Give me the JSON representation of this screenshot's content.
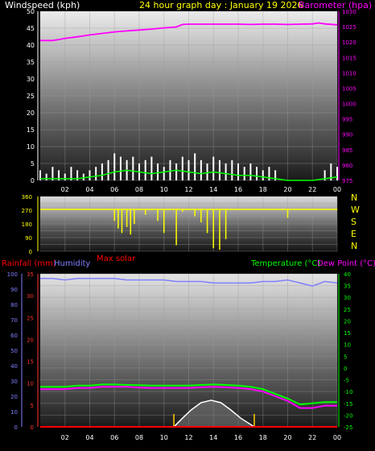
{
  "header": {
    "windspeed_label": "Windspeed (kph)",
    "title": "24 hour graph day : January 19 2026",
    "barometer_label": "Barometer (hpa)"
  },
  "colors": {
    "background": "#000000",
    "windspeed": "#ffffff",
    "gust": "#ffffff",
    "avg_wind": "#00ff00",
    "barometer": "#ff00ff",
    "wind_direction": "#ffff00",
    "humidity": "#8080ff",
    "temperature": "#00ff00",
    "dew_point": "#ff00ff",
    "rainfall": "#ff0000",
    "max_solar": "#ffffff",
    "solar": "#909090",
    "sun_markers": "#ffcc00"
  },
  "chart_data": [
    {
      "type": "line",
      "title": "24 hour graph day : January 19 2026",
      "ylabel": "Windspeed (kph)",
      "y2label": "Barometer (hpa)",
      "ylim": [
        0,
        50
      ],
      "y2lim": [
        975,
        1030
      ],
      "yticks": [
        "0",
        "5",
        "10",
        "15",
        "20",
        "25",
        "30",
        "35",
        "40",
        "45",
        "50"
      ],
      "y2ticks": [
        "975",
        "980",
        "985",
        "990",
        "995",
        "1000",
        "1005",
        "1010",
        "1015",
        "1020",
        "1025",
        "1030"
      ],
      "xticks": [
        "02",
        "04",
        "06",
        "08",
        "10",
        "12",
        "14",
        "16",
        "18",
        "20",
        "22",
        "00"
      ],
      "grid": true,
      "series": [
        {
          "name": "Barometer (hpa)",
          "axis": "right",
          "x": [
            0,
            1,
            1.5,
            2,
            3,
            4,
            5,
            6,
            7,
            8,
            9,
            10,
            11,
            11.5,
            12,
            13,
            14,
            15,
            16,
            17,
            18,
            19,
            20,
            21,
            22,
            22.5,
            23,
            24
          ],
          "values": [
            1020.5,
            1020.5,
            1020.8,
            1021.2,
            1021.7,
            1022.3,
            1022.8,
            1023.3,
            1023.6,
            1023.9,
            1024.2,
            1024.6,
            1024.9,
            1025.7,
            1025.8,
            1025.8,
            1025.8,
            1025.8,
            1025.8,
            1025.7,
            1025.8,
            1025.8,
            1025.7,
            1025.8,
            1025.9,
            1026.2,
            1025.9,
            1025.6
          ]
        },
        {
          "name": "Wind gust",
          "axis": "left",
          "x": [
            0,
            0.5,
            1,
            1.5,
            2,
            2.5,
            3,
            3.5,
            4,
            4.5,
            5,
            5.5,
            6,
            6.5,
            7,
            7.5,
            8,
            8.5,
            9,
            9.5,
            10,
            10.5,
            11,
            11.5,
            12,
            12.5,
            13,
            13.5,
            14,
            14.5,
            15,
            15.5,
            16,
            16.5,
            17,
            17.5,
            18,
            18.5,
            19,
            19.5,
            20,
            20.5,
            21,
            21.5,
            22,
            22.5,
            23,
            23.5,
            24
          ],
          "values": [
            3,
            2,
            4,
            3,
            2,
            4,
            3,
            2,
            3,
            4,
            5,
            6,
            8,
            7,
            6,
            7,
            5,
            6,
            7,
            5,
            4,
            6,
            5,
            7,
            6,
            8,
            6,
            5,
            7,
            6,
            5,
            6,
            5,
            4,
            5,
            4,
            3,
            4,
            3,
            0,
            0,
            0,
            0,
            0,
            0,
            0,
            3,
            5,
            4
          ]
        },
        {
          "name": "Average wind",
          "axis": "left",
          "x": [
            0,
            1,
            2,
            3,
            4,
            5,
            6,
            7,
            8,
            9,
            10,
            11,
            12,
            13,
            14,
            15,
            16,
            17,
            18,
            19,
            20,
            21,
            22,
            23,
            24
          ],
          "values": [
            0.5,
            0.5,
            0.5,
            0.5,
            1,
            1.5,
            2.5,
            3,
            2.5,
            2,
            2.5,
            3,
            2.5,
            2,
            2.5,
            2,
            1.5,
            1.5,
            1,
            0.5,
            0,
            0,
            0,
            0.5,
            1
          ]
        }
      ]
    },
    {
      "type": "scatter",
      "title": "",
      "ylabel": "",
      "ylim": [
        0,
        360
      ],
      "yticks": [
        "0",
        "45",
        "90",
        "135",
        "180",
        "225",
        "270",
        "315",
        "360"
      ],
      "y2ticks": [
        "N",
        "W",
        "S",
        "E",
        "N"
      ],
      "xticks": [
        "02",
        "04",
        "06",
        "08",
        "10",
        "12",
        "14",
        "16",
        "18",
        "20",
        "22",
        "00"
      ],
      "grid": true,
      "series": [
        {
          "name": "Wind direction",
          "x": [
            0,
            1,
            2,
            3,
            4,
            4.5,
            5,
            5.5,
            6,
            6.3,
            6.6,
            7,
            7.3,
            7.6,
            8,
            8.5,
            9,
            9.5,
            10,
            10.5,
            11,
            11.5,
            12,
            12.5,
            13,
            13.5,
            14,
            14.5,
            15,
            15.5,
            16,
            17,
            18,
            19,
            20,
            21,
            22,
            23,
            24
          ],
          "values": [
            275,
            276,
            274,
            275,
            277,
            273,
            276,
            275,
            200,
            150,
            120,
            160,
            110,
            180,
            280,
            240,
            270,
            200,
            120,
            275,
            40,
            260,
            275,
            230,
            190,
            120,
            20,
            10,
            80,
            270,
            275,
            276,
            274,
            275,
            220,
            276,
            275,
            274,
            276
          ]
        }
      ]
    },
    {
      "type": "line",
      "title": "",
      "ylabel": "Rainfall (mm)",
      "y2label": "Temperature (°C)",
      "ylim": [
        0,
        35
      ],
      "y2lim": [
        -25,
        40
      ],
      "yticks": [
        "0",
        "5",
        "10",
        "15",
        "20",
        "25",
        "30",
        "35"
      ],
      "humidity_ticks": [
        "0",
        "10",
        "20",
        "30",
        "40",
        "50",
        "60",
        "70",
        "80",
        "90",
        "100"
      ],
      "y2ticks": [
        "-25",
        "-20",
        "-15",
        "-10",
        "-5",
        "0",
        "5",
        "10",
        "15",
        "20",
        "25",
        "30",
        "35",
        "40"
      ],
      "xticks": [
        "02",
        "04",
        "06",
        "08",
        "10",
        "12",
        "14",
        "16",
        "18",
        "20",
        "22",
        "00"
      ],
      "grid": true,
      "legend": [
        "Rainfall (mm)",
        "Humidity",
        "Max solar",
        "Temperature (°C)",
        "Dew Point (°C)"
      ],
      "series": [
        {
          "name": "Humidity",
          "axis": "humidity",
          "x": [
            0,
            1,
            2,
            3,
            4,
            5,
            6,
            7,
            8,
            9,
            10,
            11,
            12,
            13,
            14,
            15,
            16,
            17,
            18,
            19,
            20,
            21,
            22,
            23,
            24
          ],
          "values": [
            97,
            97,
            96,
            97,
            97,
            97,
            97,
            96,
            96,
            96,
            96,
            95,
            95,
            95,
            94,
            94,
            94,
            94,
            95,
            95,
            96,
            94,
            92,
            95,
            94
          ]
        },
        {
          "name": "Temperature (°C)",
          "axis": "right",
          "x": [
            0,
            1,
            2,
            3,
            4,
            5,
            6,
            7,
            8,
            9,
            10,
            11,
            12,
            13,
            14,
            15,
            16,
            17,
            18,
            19,
            20,
            21,
            22,
            23,
            24
          ],
          "values": [
            -8,
            -8,
            -8,
            -7.5,
            -7.5,
            -7,
            -7,
            -7.2,
            -7.3,
            -7.5,
            -7.5,
            -7.5,
            -7.5,
            -7.2,
            -7,
            -7.2,
            -7.5,
            -8,
            -9,
            -11,
            -13,
            -15.5,
            -15,
            -14.5,
            -14.5
          ]
        },
        {
          "name": "Dew Point (°C)",
          "axis": "right",
          "x": [
            0,
            1,
            2,
            3,
            4,
            5,
            6,
            7,
            8,
            9,
            10,
            11,
            12,
            13,
            14,
            15,
            16,
            17,
            18,
            19,
            20,
            21,
            22,
            23,
            24
          ],
          "values": [
            -9,
            -9,
            -9,
            -8.5,
            -8.5,
            -8,
            -8,
            -8,
            -8.3,
            -8.5,
            -8.5,
            -8.5,
            -8.5,
            -8.2,
            -8,
            -8.2,
            -8.5,
            -9,
            -10,
            -12,
            -14,
            -17,
            -17,
            -16,
            -16
          ]
        },
        {
          "name": "Rainfall (mm)",
          "axis": "left",
          "x": [
            0,
            24
          ],
          "values": [
            0,
            0
          ]
        },
        {
          "name": "Max solar",
          "axis": "solar",
          "x": [
            10.8,
            11.5,
            12.2,
            13,
            13.8,
            14.6,
            15.4,
            16.2,
            17.3
          ],
          "values": [
            0,
            0.18,
            0.35,
            0.5,
            0.55,
            0.5,
            0.35,
            0.18,
            0
          ]
        }
      ],
      "sunrise": 10.8,
      "sunset": 17.3
    }
  ]
}
